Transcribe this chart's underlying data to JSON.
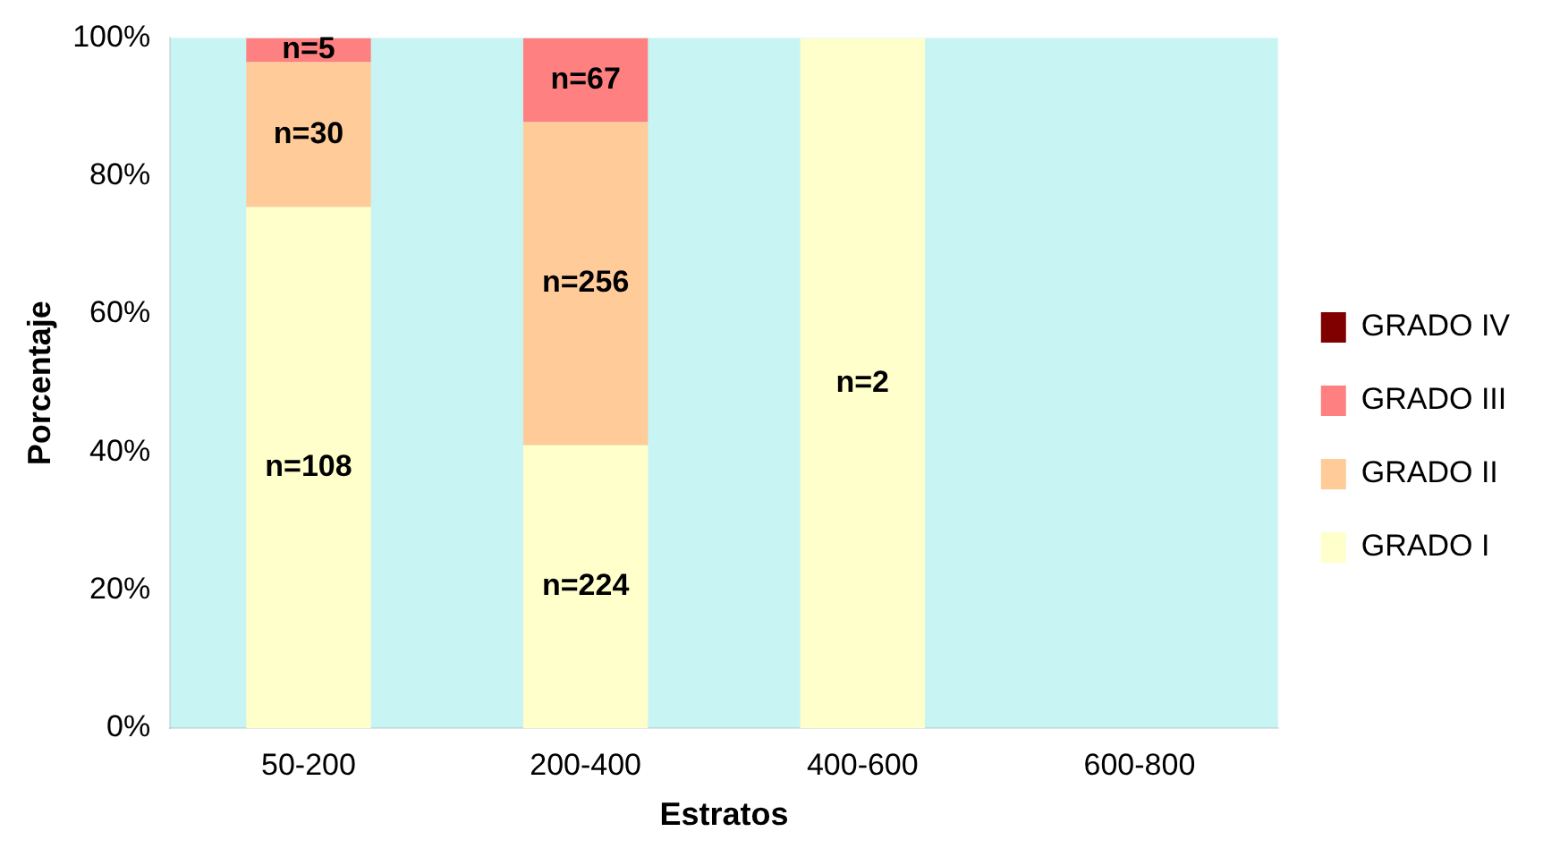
{
  "chart_data": {
    "type": "bar",
    "stacked": true,
    "xlabel": "Estratos",
    "ylabel": "Porcentaje",
    "categories": [
      "50-200",
      "200-400",
      "400-600",
      "600-800"
    ],
    "series": [
      {
        "name": "GRADO I",
        "color": "#ffffcc",
        "values": [
          75.5,
          41,
          100,
          null
        ]
      },
      {
        "name": "GRADO II",
        "color": "#ffcc99",
        "values": [
          21,
          46.8,
          null,
          null
        ]
      },
      {
        "name": "GRADO III",
        "color": "#ff8080",
        "values": [
          3.5,
          12.2,
          null,
          null
        ]
      },
      {
        "name": "GRADO IV",
        "color": "#800000",
        "values": [
          null,
          null,
          null,
          null
        ]
      }
    ],
    "annotations": [
      "n=108",
      "n=30",
      "n=5",
      "n=224",
      "n=256",
      "n=67",
      "n=2"
    ],
    "ylim": [
      0,
      100
    ],
    "yticks": [
      {
        "value": 0,
        "label": "0%"
      },
      {
        "value": 20,
        "label": "20%"
      },
      {
        "value": 40,
        "label": "40%"
      },
      {
        "value": 60,
        "label": "60%"
      },
      {
        "value": 80,
        "label": "80%"
      },
      {
        "value": 100,
        "label": "100%"
      }
    ],
    "legend": "right"
  }
}
